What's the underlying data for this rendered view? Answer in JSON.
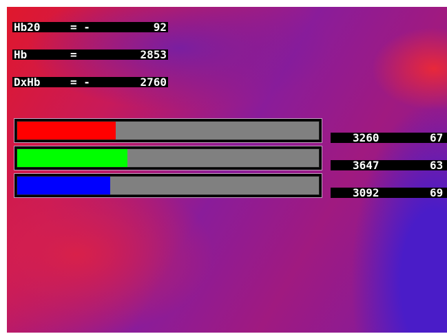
{
  "readouts": [
    {
      "label": "Hb20",
      "operator": "= -",
      "value": 92
    },
    {
      "label": "Hb",
      "operator": "=",
      "value": 2853
    },
    {
      "label": "DxHb",
      "operator": "= -",
      "value": 2760
    }
  ],
  "channels": {
    "range": [
      0,
      10000
    ],
    "items": [
      {
        "color": "#ff0000",
        "value": 3260,
        "secondary": 67
      },
      {
        "color": "#00ff00",
        "value": 3647,
        "secondary": 63
      },
      {
        "color": "#0000ff",
        "value": 3092,
        "secondary": 69
      }
    ]
  }
}
